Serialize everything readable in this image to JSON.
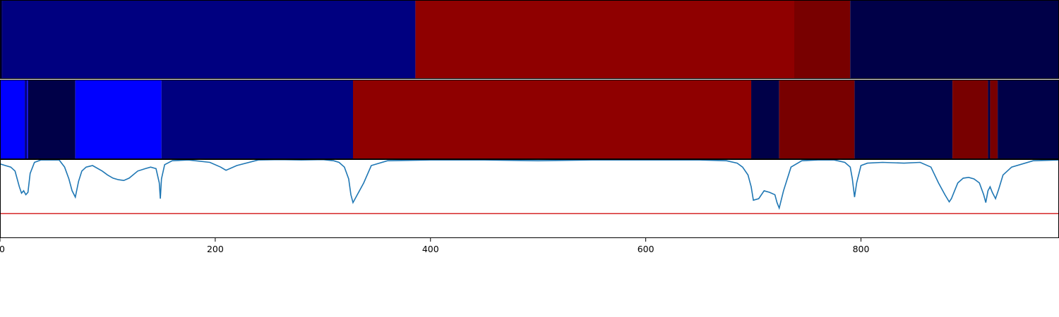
{
  "chart_data": {
    "type": "segmentation-plot",
    "x_range": [
      0,
      984
    ],
    "x_ticks": [
      "0",
      "200",
      "400",
      "600",
      "800"
    ],
    "x_tick_values": [
      0,
      200,
      400,
      600,
      800
    ],
    "grid": false,
    "panels": [
      {
        "name": "segmentation-strip-1",
        "type": "heatmap",
        "segments": [
          {
            "start": 0,
            "end": 2,
            "color": "#000040"
          },
          {
            "start": 2,
            "end": 386,
            "color": "#000080"
          },
          {
            "start": 386,
            "end": 738,
            "color": "#8f0000"
          },
          {
            "start": 738,
            "end": 790,
            "color": "#780000"
          },
          {
            "start": 790,
            "end": 984,
            "color": "#000048"
          }
        ]
      },
      {
        "name": "segmentation-strip-2",
        "type": "heatmap",
        "segments": [
          {
            "start": 0,
            "end": 23,
            "color": "#0000ff"
          },
          {
            "start": 23,
            "end": 25,
            "color": "#000080"
          },
          {
            "start": 25,
            "end": 26,
            "color": "#0000ff"
          },
          {
            "start": 26,
            "end": 70,
            "color": "#000048"
          },
          {
            "start": 70,
            "end": 150,
            "color": "#0000ff"
          },
          {
            "start": 150,
            "end": 328,
            "color": "#000080"
          },
          {
            "start": 328,
            "end": 698,
            "color": "#8f0000"
          },
          {
            "start": 698,
            "end": 724,
            "color": "#000048"
          },
          {
            "start": 724,
            "end": 794,
            "color": "#780000"
          },
          {
            "start": 794,
            "end": 885,
            "color": "#000048"
          },
          {
            "start": 885,
            "end": 918,
            "color": "#780000"
          },
          {
            "start": 918,
            "end": 920,
            "color": "#000048"
          },
          {
            "start": 920,
            "end": 927,
            "color": "#780000"
          },
          {
            "start": 927,
            "end": 984,
            "color": "#000048"
          }
        ]
      },
      {
        "name": "signal-plot",
        "type": "line",
        "ylim": [
          0,
          1
        ],
        "threshold": 0.31,
        "threshold_color": "#d62728",
        "line_color": "#1f77b4",
        "x": [
          0,
          5,
          10,
          14,
          18,
          20,
          22,
          24,
          26,
          28,
          32,
          38,
          45,
          55,
          60,
          64,
          67,
          70,
          73,
          76,
          80,
          86,
          95,
          100,
          105,
          110,
          115,
          120,
          128,
          135,
          140,
          145,
          148,
          149,
          150,
          153,
          160,
          175,
          195,
          205,
          210,
          220,
          240,
          260,
          280,
          300,
          310,
          315,
          320,
          324,
          326,
          328,
          332,
          338,
          345,
          360,
          400,
          450,
          500,
          550,
          600,
          650,
          675,
          685,
          690,
          695,
          698,
          700,
          705,
          710,
          715,
          720,
          722,
          724,
          728,
          735,
          745,
          760,
          775,
          785,
          790,
          792,
          794,
          796,
          800,
          806,
          820,
          840,
          855,
          865,
          872,
          878,
          882,
          884,
          887,
          890,
          895,
          900,
          905,
          910,
          914,
          916,
          918,
          920,
          922,
          925,
          928,
          932,
          940,
          960,
          984
        ],
        "y": [
          0.94,
          0.92,
          0.9,
          0.85,
          0.65,
          0.57,
          0.6,
          0.55,
          0.58,
          0.82,
          0.96,
          0.99,
          0.99,
          0.99,
          0.9,
          0.75,
          0.6,
          0.52,
          0.72,
          0.85,
          0.9,
          0.92,
          0.85,
          0.8,
          0.76,
          0.74,
          0.73,
          0.76,
          0.85,
          0.88,
          0.9,
          0.88,
          0.7,
          0.5,
          0.75,
          0.93,
          0.98,
          0.99,
          0.96,
          0.9,
          0.86,
          0.92,
          0.99,
          0.995,
          0.99,
          0.995,
          0.98,
          0.96,
          0.9,
          0.75,
          0.55,
          0.45,
          0.55,
          0.7,
          0.92,
          0.98,
          0.99,
          0.99,
          0.98,
          0.99,
          0.99,
          0.99,
          0.98,
          0.95,
          0.9,
          0.8,
          0.65,
          0.48,
          0.5,
          0.6,
          0.58,
          0.55,
          0.45,
          0.38,
          0.6,
          0.9,
          0.98,
          0.99,
          0.99,
          0.96,
          0.9,
          0.75,
          0.52,
          0.7,
          0.92,
          0.95,
          0.96,
          0.95,
          0.96,
          0.9,
          0.7,
          0.55,
          0.46,
          0.5,
          0.6,
          0.7,
          0.76,
          0.77,
          0.75,
          0.7,
          0.55,
          0.45,
          0.6,
          0.65,
          0.58,
          0.5,
          0.62,
          0.8,
          0.9,
          0.98,
          0.99
        ]
      }
    ]
  }
}
